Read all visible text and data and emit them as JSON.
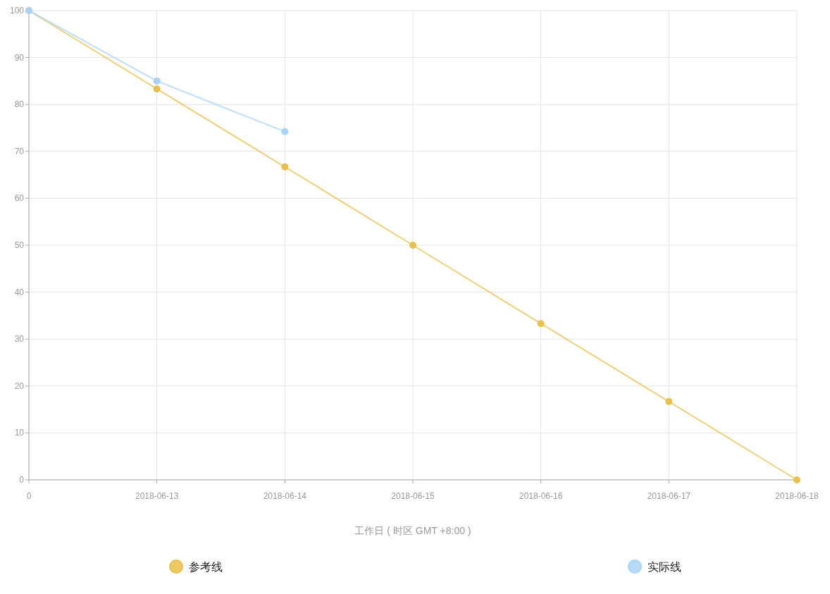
{
  "chart_data": {
    "type": "line",
    "xlabel": "工作日 ( 时区 GMT +8:00 )",
    "categories": [
      "0",
      "2018-06-13",
      "2018-06-14",
      "2018-06-15",
      "2018-06-16",
      "2018-06-17",
      "2018-06-18"
    ],
    "ylim": [
      0,
      100
    ],
    "yticks": [
      0,
      10,
      20,
      30,
      40,
      50,
      60,
      70,
      80,
      90,
      100
    ],
    "grid": true,
    "legend": "bottom",
    "marker": "circle",
    "line_style": "solid",
    "series": [
      {
        "name": "参考线",
        "color": "#e9c04a",
        "values": [
          100,
          83.3,
          66.7,
          50,
          33.3,
          16.7,
          0
        ]
      },
      {
        "name": "实际线",
        "color": "#a9d3f5",
        "values": [
          100,
          85,
          74.2,
          null,
          null,
          null,
          null
        ]
      }
    ]
  }
}
